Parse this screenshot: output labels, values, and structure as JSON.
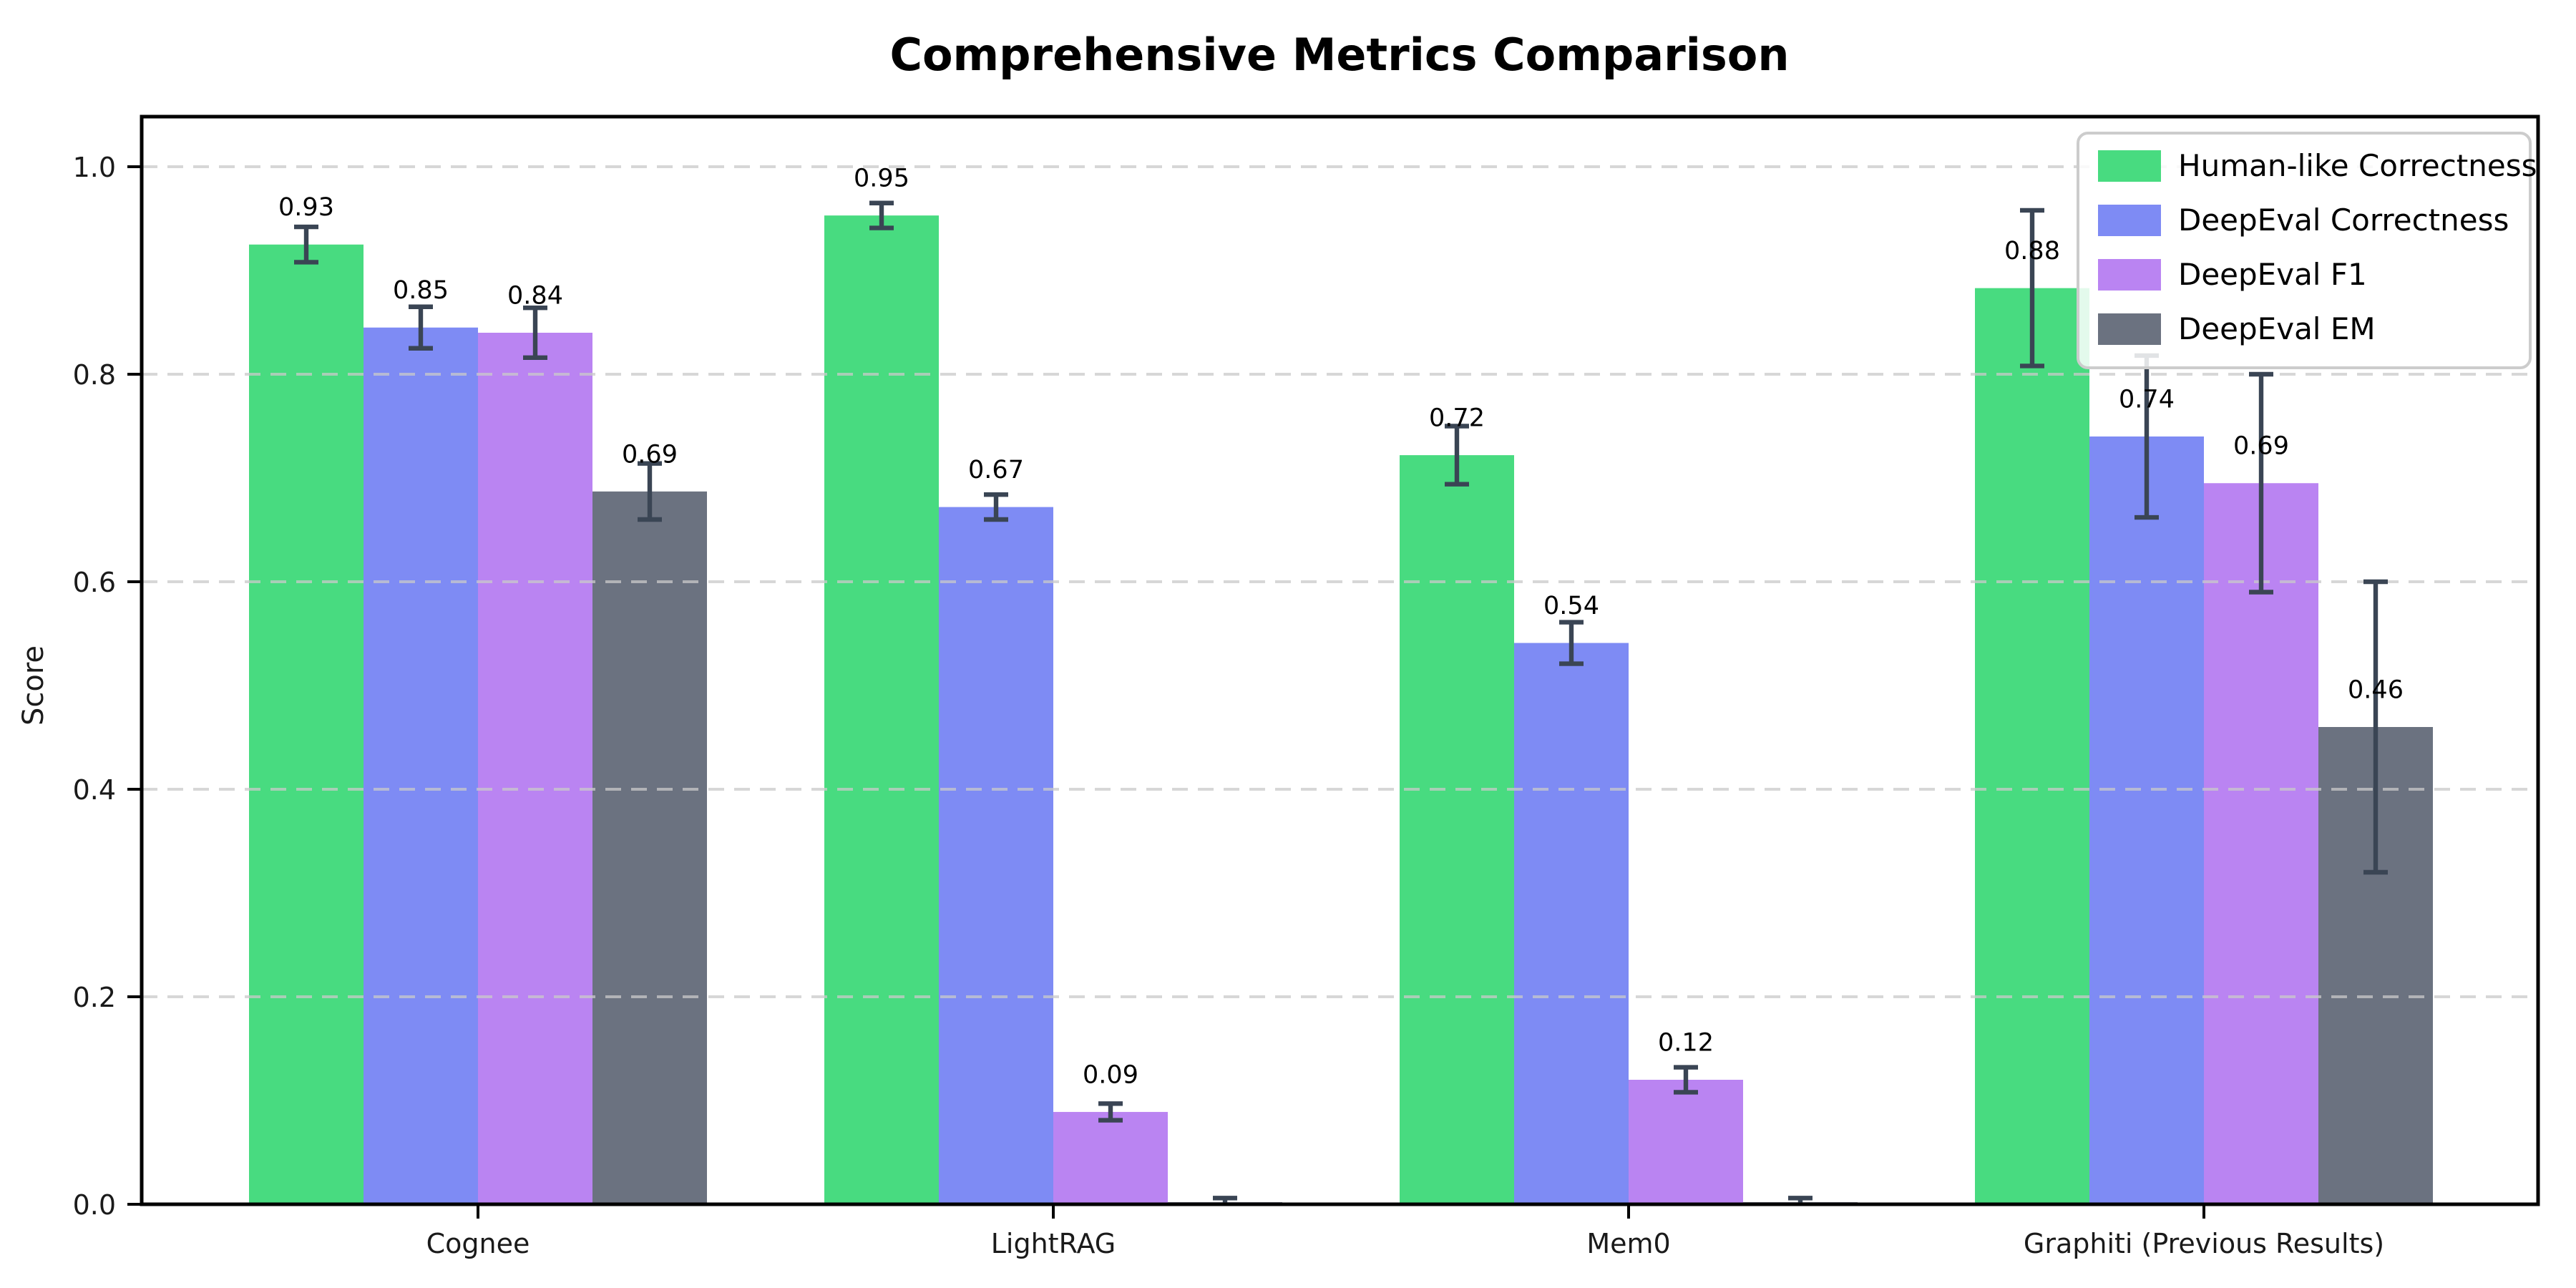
{
  "page": {
    "background": "#ffffff"
  },
  "chart_data": {
    "type": "bar",
    "title": "Comprehensive Metrics Comparison",
    "ylabel": "Score",
    "xlabel": "",
    "categories": [
      "Cognee",
      "LightRAG",
      "Mem0",
      "Graphiti (Previous Results)"
    ],
    "yticks": [
      0.0,
      0.2,
      0.4,
      0.6,
      0.8,
      1.0
    ],
    "ylim": [
      0,
      1.048
    ],
    "grid": {
      "axis": "y",
      "style": "dashed",
      "color": "#c9c9c9",
      "alpha": 0.75
    },
    "legend_position": "upper right",
    "error_bar_color": "#3a4554",
    "series": [
      {
        "name": "Human-like Correctness",
        "color": "#48db80",
        "values": [
          0.925,
          0.953,
          0.722,
          0.883
        ],
        "errors": [
          0.017,
          0.012,
          0.028,
          0.075
        ],
        "labels": [
          "0.93",
          "0.95",
          "0.72",
          "0.88"
        ]
      },
      {
        "name": "DeepEval Correctness",
        "color": "#7e8bf4",
        "values": [
          0.845,
          0.672,
          0.541,
          0.74
        ],
        "errors": [
          0.02,
          0.012,
          0.02,
          0.078
        ],
        "labels": [
          "0.85",
          "0.67",
          "0.54",
          "0.74"
        ]
      },
      {
        "name": "DeepEval F1",
        "color": "#ba84f2",
        "values": [
          0.84,
          0.089,
          0.12,
          0.695
        ],
        "errors": [
          0.024,
          0.008,
          0.012,
          0.105
        ],
        "labels": [
          "0.84",
          "0.09",
          "0.12",
          "0.69"
        ]
      },
      {
        "name": "DeepEval EM",
        "color": "#6b7280",
        "values": [
          0.687,
          0.002,
          0.002,
          0.46
        ],
        "errors": [
          0.027,
          0.004,
          0.004,
          0.14
        ],
        "labels": [
          "0.69",
          "",
          "",
          "0.46"
        ]
      }
    ]
  }
}
